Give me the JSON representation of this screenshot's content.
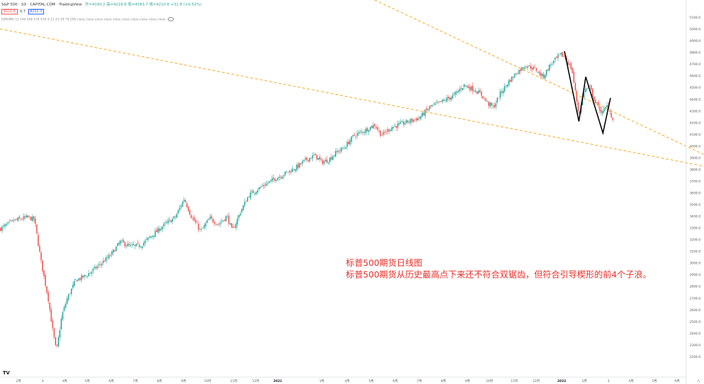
{
  "header": {
    "symbol": "S&P 500 · 1D · CAPITAL.COM · TradingView",
    "ohlc": "开=4190.2  高=4216.6  低=4183.7  收=4210.6  +31.8 (+0.52%)",
    "sell_price": "4210.6",
    "spread": "0.7",
    "buy_price": "4211.3",
    "indicator": "EMA/MA 12 144 169 576 676 4 11 23 29 79 200 close close close close close close close close close close"
  },
  "annotation": {
    "line1": "标普500期货日线图",
    "line2": "标普500期货从历史最高点下来还不符合双锯齿，但符合引导楔形的前4个子浪。"
  },
  "chart_data": {
    "type": "candlestick",
    "title": "",
    "xlabel": "",
    "ylabel": "",
    "ylim": [
      2100,
      5200
    ],
    "y_ticks": [
      2200,
      2300,
      2400,
      2500,
      2600,
      2700,
      2800,
      2900,
      3000,
      3100,
      3200,
      3300,
      3400,
      3500,
      3600,
      3700,
      3800,
      3900,
      4000,
      4100,
      4200,
      4300,
      4400,
      4500,
      4600,
      4700,
      4800,
      4900,
      5000,
      5100
    ],
    "x_ticks": [
      "2月",
      "3",
      "4月",
      "5月",
      "6月",
      "7月",
      "8月",
      "9月",
      "10月",
      "11月",
      "12月",
      "2021",
      "3月",
      "4月",
      "5月",
      "6月",
      "7月",
      "8月",
      "9月",
      "10月",
      "11月",
      "12月",
      "2022",
      "2月",
      "3",
      "4月",
      "5月",
      "6月",
      "八"
    ],
    "close_path": [
      [
        0,
        3290
      ],
      [
        20,
        3360
      ],
      [
        40,
        3390
      ],
      [
        50,
        3370
      ],
      [
        60,
        3000
      ],
      [
        70,
        2700
      ],
      [
        76,
        2450
      ],
      [
        82,
        2240
      ],
      [
        90,
        2550
      ],
      [
        98,
        2700
      ],
      [
        110,
        2850
      ],
      [
        125,
        2890
      ],
      [
        140,
        2960
      ],
      [
        160,
        3060
      ],
      [
        175,
        3180
      ],
      [
        190,
        3140
      ],
      [
        205,
        3150
      ],
      [
        220,
        3230
      ],
      [
        240,
        3330
      ],
      [
        255,
        3390
      ],
      [
        268,
        3550
      ],
      [
        278,
        3400
      ],
      [
        292,
        3270
      ],
      [
        305,
        3380
      ],
      [
        318,
        3330
      ],
      [
        330,
        3400
      ],
      [
        338,
        3270
      ],
      [
        350,
        3440
      ],
      [
        362,
        3580
      ],
      [
        380,
        3650
      ],
      [
        400,
        3720
      ],
      [
        420,
        3780
      ],
      [
        432,
        3820
      ],
      [
        445,
        3880
      ],
      [
        458,
        3920
      ],
      [
        468,
        3860
      ],
      [
        478,
        3880
      ],
      [
        490,
        3950
      ],
      [
        500,
        3980
      ],
      [
        515,
        4090
      ],
      [
        530,
        4130
      ],
      [
        545,
        4180
      ],
      [
        555,
        4090
      ],
      [
        570,
        4160
      ],
      [
        590,
        4200
      ],
      [
        610,
        4240
      ],
      [
        625,
        4330
      ],
      [
        640,
        4370
      ],
      [
        660,
        4430
      ],
      [
        675,
        4520
      ],
      [
        690,
        4480
      ],
      [
        700,
        4440
      ],
      [
        710,
        4360
      ],
      [
        718,
        4330
      ],
      [
        728,
        4450
      ],
      [
        740,
        4550
      ],
      [
        752,
        4630
      ],
      [
        765,
        4690
      ],
      [
        780,
        4650
      ],
      [
        790,
        4590
      ],
      [
        800,
        4690
      ],
      [
        815,
        4780
      ],
      [
        822,
        4760
      ],
      [
        832,
        4650
      ],
      [
        842,
        4260
      ],
      [
        850,
        4480
      ],
      [
        858,
        4500
      ],
      [
        866,
        4370
      ],
      [
        876,
        4280
      ],
      [
        884,
        4350
      ],
      [
        892,
        4210
      ]
    ],
    "wedge_wave": [
      [
        821,
        4810
      ],
      [
        842,
        4210
      ],
      [
        852,
        4590
      ],
      [
        877,
        4110
      ],
      [
        888,
        4410
      ]
    ],
    "channel_upper": [
      [
        545,
        0
      ],
      [
        1024,
        225
      ]
    ],
    "channel_lower": [
      [
        0,
        42
      ],
      [
        1024,
        242
      ]
    ]
  },
  "colors": {
    "up": "#26a69a",
    "down": "#ef5350",
    "channel": "#f5a623",
    "wave": "#000000",
    "annotation": "#e8302a"
  }
}
